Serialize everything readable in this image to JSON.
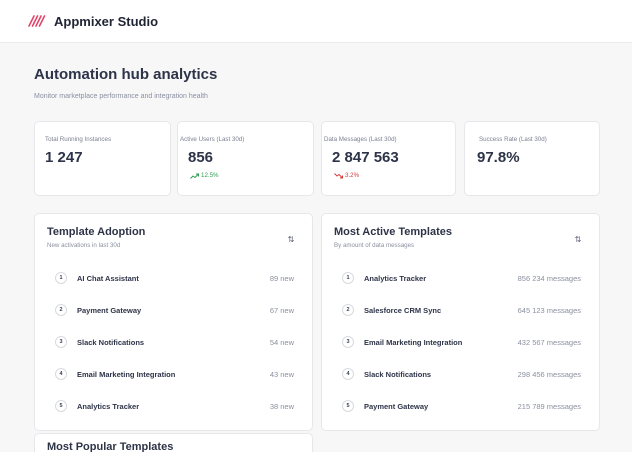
{
  "header": {
    "app_name": "Appmixer Studio",
    "logo_icon": "appmixer-logo-icon",
    "brand_color": "#e0476a"
  },
  "page": {
    "title": "Automation hub analytics",
    "subtitle": "Monitor marketplace performance and integration health"
  },
  "stats": [
    {
      "label": "Total Running Instances",
      "value": "1 247",
      "change": ""
    },
    {
      "label": "Active Users (Last 30d)",
      "value": "856",
      "change": "12.5%",
      "trend": "up"
    },
    {
      "label": "Data Messages (Last 30d)",
      "value": "2 847 563",
      "change": "3.2%",
      "trend": "down"
    },
    {
      "label": "Success Rate (Last 30d)",
      "value": "97.8%",
      "change": ""
    }
  ],
  "template_adoption": {
    "title": "Template Adoption",
    "subtitle": "New activations in last 30d",
    "sort_icon": "sort-icon",
    "sort_label": "⇅",
    "items": [
      {
        "rank": "1",
        "name": "AI Chat Assistant",
        "value": "89 new"
      },
      {
        "rank": "2",
        "name": "Payment Gateway",
        "value": "67 new"
      },
      {
        "rank": "3",
        "name": "Slack Notifications",
        "value": "54 new"
      },
      {
        "rank": "4",
        "name": "Email Marketing Integration",
        "value": "43 new"
      },
      {
        "rank": "5",
        "name": "Analytics Tracker",
        "value": "38 new"
      }
    ]
  },
  "most_active": {
    "title": "Most Active Templates",
    "subtitle": "By amount of data messages",
    "sort_icon": "sort-icon",
    "sort_label": "⇅",
    "items": [
      {
        "rank": "1",
        "name": "Analytics Tracker",
        "value": "856 234 messages"
      },
      {
        "rank": "2",
        "name": "Salesforce CRM Sync",
        "value": "645 123 messages"
      },
      {
        "rank": "3",
        "name": "Email Marketing Integration",
        "value": "432 567 messages"
      },
      {
        "rank": "4",
        "name": "Slack Notifications",
        "value": "298 456 messages"
      },
      {
        "rank": "5",
        "name": "Payment Gateway",
        "value": "215 789 messages"
      }
    ]
  },
  "most_popular": {
    "title": "Most Popular Templates"
  }
}
